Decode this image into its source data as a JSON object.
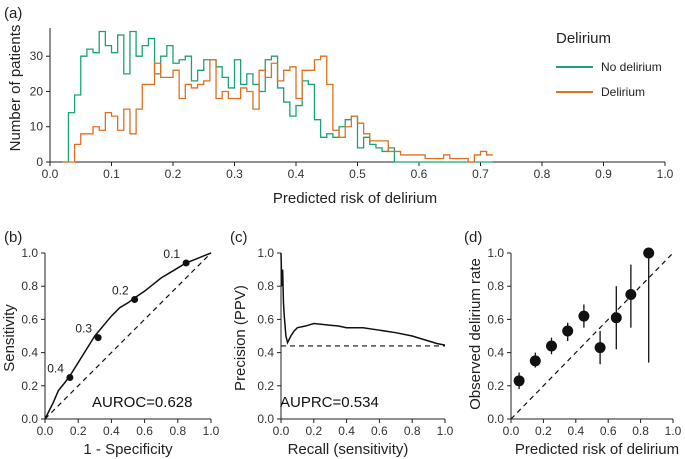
{
  "chart_data": [
    {
      "panel": "(a)",
      "type": "histogram-step",
      "xlabel": "Predicted risk of delirium",
      "ylabel": "Number of patients",
      "xlim": [
        0,
        1.0
      ],
      "ylim": [
        0,
        38
      ],
      "xticks": [
        "0.0",
        "0.1",
        "0.2",
        "0.3",
        "0.4",
        "0.5",
        "0.6",
        "0.7",
        "0.8",
        "0.9",
        "1.0"
      ],
      "yticks": [
        "0",
        "10",
        "20",
        "30"
      ],
      "legend": {
        "title": "Delirium",
        "placement": "top-right"
      },
      "bin_start": 0.02,
      "bin_width": 0.01,
      "series": [
        {
          "name": "No delirium",
          "color": "#1aa37a",
          "values": [
            0,
            14,
            19,
            30,
            32,
            31,
            37,
            33,
            31,
            36,
            25,
            37,
            30,
            33,
            35,
            25,
            30,
            33,
            28,
            29,
            30,
            23,
            26,
            29,
            29,
            27,
            24,
            21,
            29,
            22,
            25,
            22,
            20,
            29,
            30,
            21,
            17,
            13,
            16,
            23,
            22,
            12,
            7,
            8,
            7,
            10,
            12,
            13,
            4,
            7,
            5,
            4,
            3,
            4,
            0,
            0,
            0,
            0,
            0,
            0,
            0,
            0,
            0,
            0,
            0,
            0,
            0,
            0,
            0,
            0
          ]
        },
        {
          "name": "Delirium",
          "color": "#e07020",
          "values": [
            0,
            0,
            5,
            8,
            8,
            10,
            9,
            14,
            13,
            9,
            15,
            8,
            15,
            22,
            22,
            28,
            24,
            24,
            26,
            18,
            22,
            21,
            22,
            23,
            29,
            18,
            20,
            18,
            18,
            21,
            20,
            15,
            26,
            24,
            28,
            23,
            26,
            27,
            18,
            26,
            26,
            29,
            30,
            22,
            9,
            7,
            10,
            13,
            11,
            8,
            6,
            6,
            6,
            3,
            3,
            2,
            2,
            2,
            2,
            1,
            1,
            1,
            2,
            1,
            1,
            1,
            0,
            2,
            3,
            2
          ]
        }
      ]
    },
    {
      "panel": "(b)",
      "type": "line",
      "title_annotation": "AUROC=0.628",
      "xlabel": "1 - Specificity",
      "ylabel": "Sensitivity",
      "xlim": [
        0,
        1
      ],
      "ylim": [
        0,
        1
      ],
      "xticks": [
        "0.0",
        "0.2",
        "0.4",
        "0.6",
        "0.8",
        "1.0"
      ],
      "yticks": [
        "0.0",
        "0.2",
        "0.4",
        "0.6",
        "0.8",
        "1.0"
      ],
      "curve": {
        "x": [
          0,
          0.02,
          0.05,
          0.08,
          0.12,
          0.15,
          0.2,
          0.25,
          0.3,
          0.35,
          0.4,
          0.45,
          0.5,
          0.54,
          0.6,
          0.65,
          0.7,
          0.75,
          0.8,
          0.85,
          0.9,
          0.95,
          1.0
        ],
        "y": [
          0,
          0.04,
          0.1,
          0.17,
          0.22,
          0.26,
          0.34,
          0.42,
          0.5,
          0.56,
          0.62,
          0.67,
          0.7,
          0.73,
          0.77,
          0.81,
          0.85,
          0.88,
          0.91,
          0.94,
          0.96,
          0.98,
          1.0
        ]
      },
      "diagonal": true,
      "threshold_points": [
        {
          "label": "0.1",
          "x": 0.85,
          "y": 0.94
        },
        {
          "label": "0.2",
          "x": 0.54,
          "y": 0.72
        },
        {
          "label": "0.3",
          "x": 0.32,
          "y": 0.49
        },
        {
          "label": "0.4",
          "x": 0.15,
          "y": 0.25
        }
      ]
    },
    {
      "panel": "(c)",
      "type": "line",
      "title_annotation": "AUPRC=0.534",
      "xlabel": "Recall (sensitivity)",
      "ylabel": "Precision (PPV)",
      "xlim": [
        0,
        1
      ],
      "ylim": [
        0,
        1
      ],
      "xticks": [
        "0.0",
        "0.2",
        "0.4",
        "0.6",
        "0.8",
        "1.0"
      ],
      "yticks": [
        "0.0",
        "0.2",
        "0.4",
        "0.6",
        "0.8",
        "1.0"
      ],
      "curve": {
        "x": [
          0,
          0.005,
          0.01,
          0.015,
          0.02,
          0.03,
          0.04,
          0.06,
          0.08,
          0.1,
          0.15,
          0.2,
          0.25,
          0.3,
          0.35,
          0.4,
          0.5,
          0.6,
          0.7,
          0.8,
          0.9,
          0.95,
          1.0
        ],
        "y": [
          1.0,
          0.8,
          0.9,
          0.7,
          0.62,
          0.5,
          0.46,
          0.5,
          0.53,
          0.55,
          0.56,
          0.575,
          0.57,
          0.565,
          0.56,
          0.55,
          0.55,
          0.535,
          0.52,
          0.5,
          0.47,
          0.455,
          0.445
        ]
      },
      "baseline": 0.44
    },
    {
      "panel": "(d)",
      "type": "scatter-errorbar",
      "xlabel": "Predicted risk of delirium",
      "ylabel": "Observed delirium rate",
      "xlim": [
        0,
        1.0
      ],
      "ylim": [
        0,
        1.0
      ],
      "xticks": [
        "0.0",
        "0.2",
        "0.4",
        "0.6",
        "0.8",
        "1.0"
      ],
      "yticks": [
        "0.0",
        "0.2",
        "0.4",
        "0.6",
        "0.8",
        "1.0"
      ],
      "diagonal": true,
      "points": [
        {
          "x": 0.05,
          "y": 0.23,
          "lo": 0.18,
          "hi": 0.28
        },
        {
          "x": 0.15,
          "y": 0.35,
          "lo": 0.31,
          "hi": 0.4
        },
        {
          "x": 0.25,
          "y": 0.44,
          "lo": 0.39,
          "hi": 0.49
        },
        {
          "x": 0.35,
          "y": 0.53,
          "lo": 0.47,
          "hi": 0.58
        },
        {
          "x": 0.45,
          "y": 0.62,
          "lo": 0.55,
          "hi": 0.69
        },
        {
          "x": 0.55,
          "y": 0.43,
          "lo": 0.33,
          "hi": 0.53
        },
        {
          "x": 0.65,
          "y": 0.61,
          "lo": 0.42,
          "hi": 0.8
        },
        {
          "x": 0.74,
          "y": 0.75,
          "lo": 0.55,
          "hi": 0.93
        },
        {
          "x": 0.85,
          "y": 1.0,
          "lo": 0.34,
          "hi": 1.0
        }
      ]
    }
  ]
}
